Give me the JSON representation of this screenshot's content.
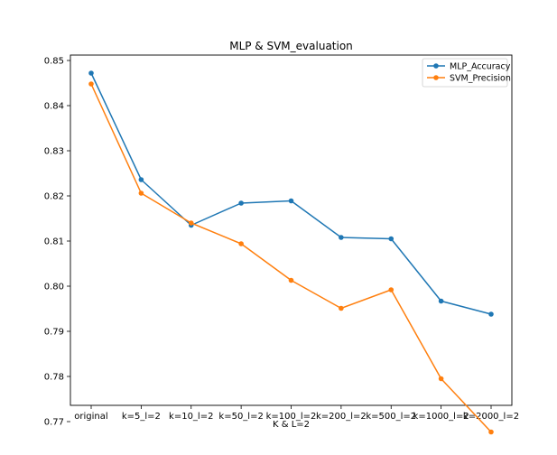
{
  "chart_data": {
    "type": "line",
    "title": "MLP & SVM_evaluation",
    "xlabel": "K & L=2",
    "ylabel": "",
    "categories": [
      "original",
      "k=5_l=2",
      "k=10_l=2",
      "k=50_l=2",
      "k=100_l=2",
      "k=200_l=2",
      "k=500_l=2",
      "k=1000_l=2",
      "k=2000_l=2"
    ],
    "yticks": [
      "0.77",
      "0.78",
      "0.79",
      "0.80",
      "0.81",
      "0.82",
      "0.83",
      "0.84",
      "0.85"
    ],
    "ylim": [
      0.7736,
      0.8512
    ],
    "grid": false,
    "legend_position": "top-right",
    "series": [
      {
        "name": "MLP_Accuracy",
        "color": "#1f77b4",
        "values": [
          0.8472,
          0.8236,
          0.8135,
          0.8184,
          0.8189,
          0.8108,
          0.8105,
          0.7967,
          0.7938
        ]
      },
      {
        "name": "SVM_Precision",
        "color": "#ff7f0e",
        "values": [
          0.8448,
          0.8206,
          0.814,
          0.8094,
          0.8013,
          0.7951,
          0.7992,
          0.7795,
          0.7677
        ]
      }
    ]
  }
}
